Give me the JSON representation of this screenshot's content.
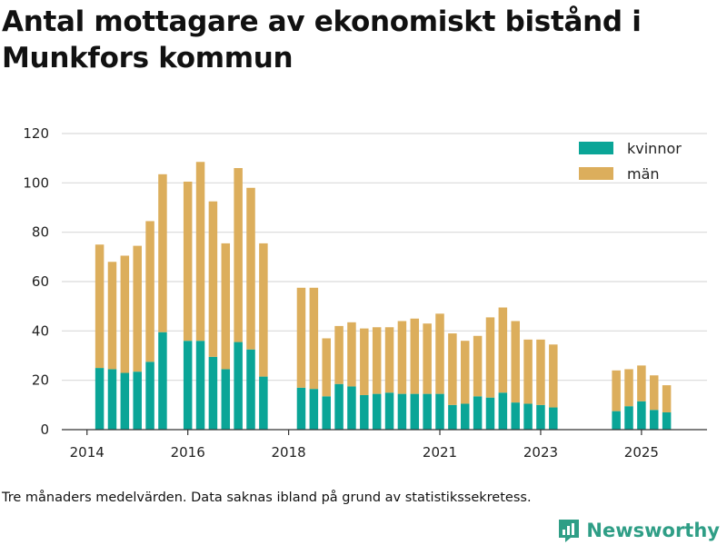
{
  "header": {
    "title": "Antal mottagare av ekonomiskt bistånd i Munkfors kommun"
  },
  "footnote": "Tre månaders medelvärden. Data saknas ibland på grund av statistikssekretess.",
  "brand": {
    "name": "Newsworthy",
    "icon": "newsworthy-logo-icon",
    "color": "#2f9e86"
  },
  "chart_data": {
    "type": "bar",
    "stacked": true,
    "title": "Antal mottagare av ekonomiskt bistånd i Munkfors kommun",
    "xlabel": "",
    "ylabel": "",
    "ylim": [
      0,
      120
    ],
    "yticks": [
      0,
      20,
      40,
      60,
      80,
      100,
      120
    ],
    "xlim": [
      2013.5,
      2026.3
    ],
    "xticks": [
      {
        "value": 2014.0,
        "label": "2014"
      },
      {
        "value": 2016.0,
        "label": "2016"
      },
      {
        "value": 2018.0,
        "label": "2018"
      },
      {
        "value": 2021.0,
        "label": "2021"
      },
      {
        "value": 2023.0,
        "label": "2023"
      },
      {
        "value": 2025.0,
        "label": "2025"
      }
    ],
    "grid": true,
    "legend_position": "top-right",
    "x": [
      2014.25,
      2014.5,
      2014.75,
      2015.0,
      2015.25,
      2015.5,
      2016.0,
      2016.25,
      2016.5,
      2016.75,
      2017.0,
      2017.25,
      2017.5,
      2018.25,
      2018.5,
      2018.75,
      2019.0,
      2019.25,
      2019.5,
      2019.75,
      2020.0,
      2020.25,
      2020.5,
      2020.75,
      2021.0,
      2021.25,
      2021.5,
      2021.75,
      2022.0,
      2022.25,
      2022.5,
      2022.75,
      2023.0,
      2023.25,
      2024.5,
      2024.75,
      2025.0,
      2025.25,
      2025.5
    ],
    "series": [
      {
        "name": "kvinnor",
        "color": "#0aa597",
        "values": [
          25,
          24.5,
          23,
          23.5,
          27.5,
          39.5,
          36,
          36,
          29.5,
          24.5,
          35.5,
          32.5,
          21.5,
          17,
          16.5,
          13.5,
          18.5,
          17.5,
          14,
          14.5,
          15,
          14.5,
          14.5,
          14.5,
          14.5,
          10,
          10.5,
          13.5,
          13,
          15,
          11,
          10.5,
          10,
          9,
          7.5,
          9.5,
          11.5,
          8,
          7
        ]
      },
      {
        "name": "män",
        "color": "#dcae5c",
        "values": [
          50,
          43.5,
          47.5,
          51,
          57,
          64,
          64.5,
          72.5,
          63,
          51,
          70.5,
          65.5,
          54,
          40.5,
          41,
          23.5,
          23.5,
          26,
          27,
          27,
          26.5,
          29.5,
          30.5,
          28.5,
          32.5,
          29,
          25.5,
          24.5,
          32.5,
          34.5,
          33,
          26,
          26.5,
          25.5,
          16.5,
          15,
          14.5,
          14,
          11
        ]
      }
    ]
  }
}
